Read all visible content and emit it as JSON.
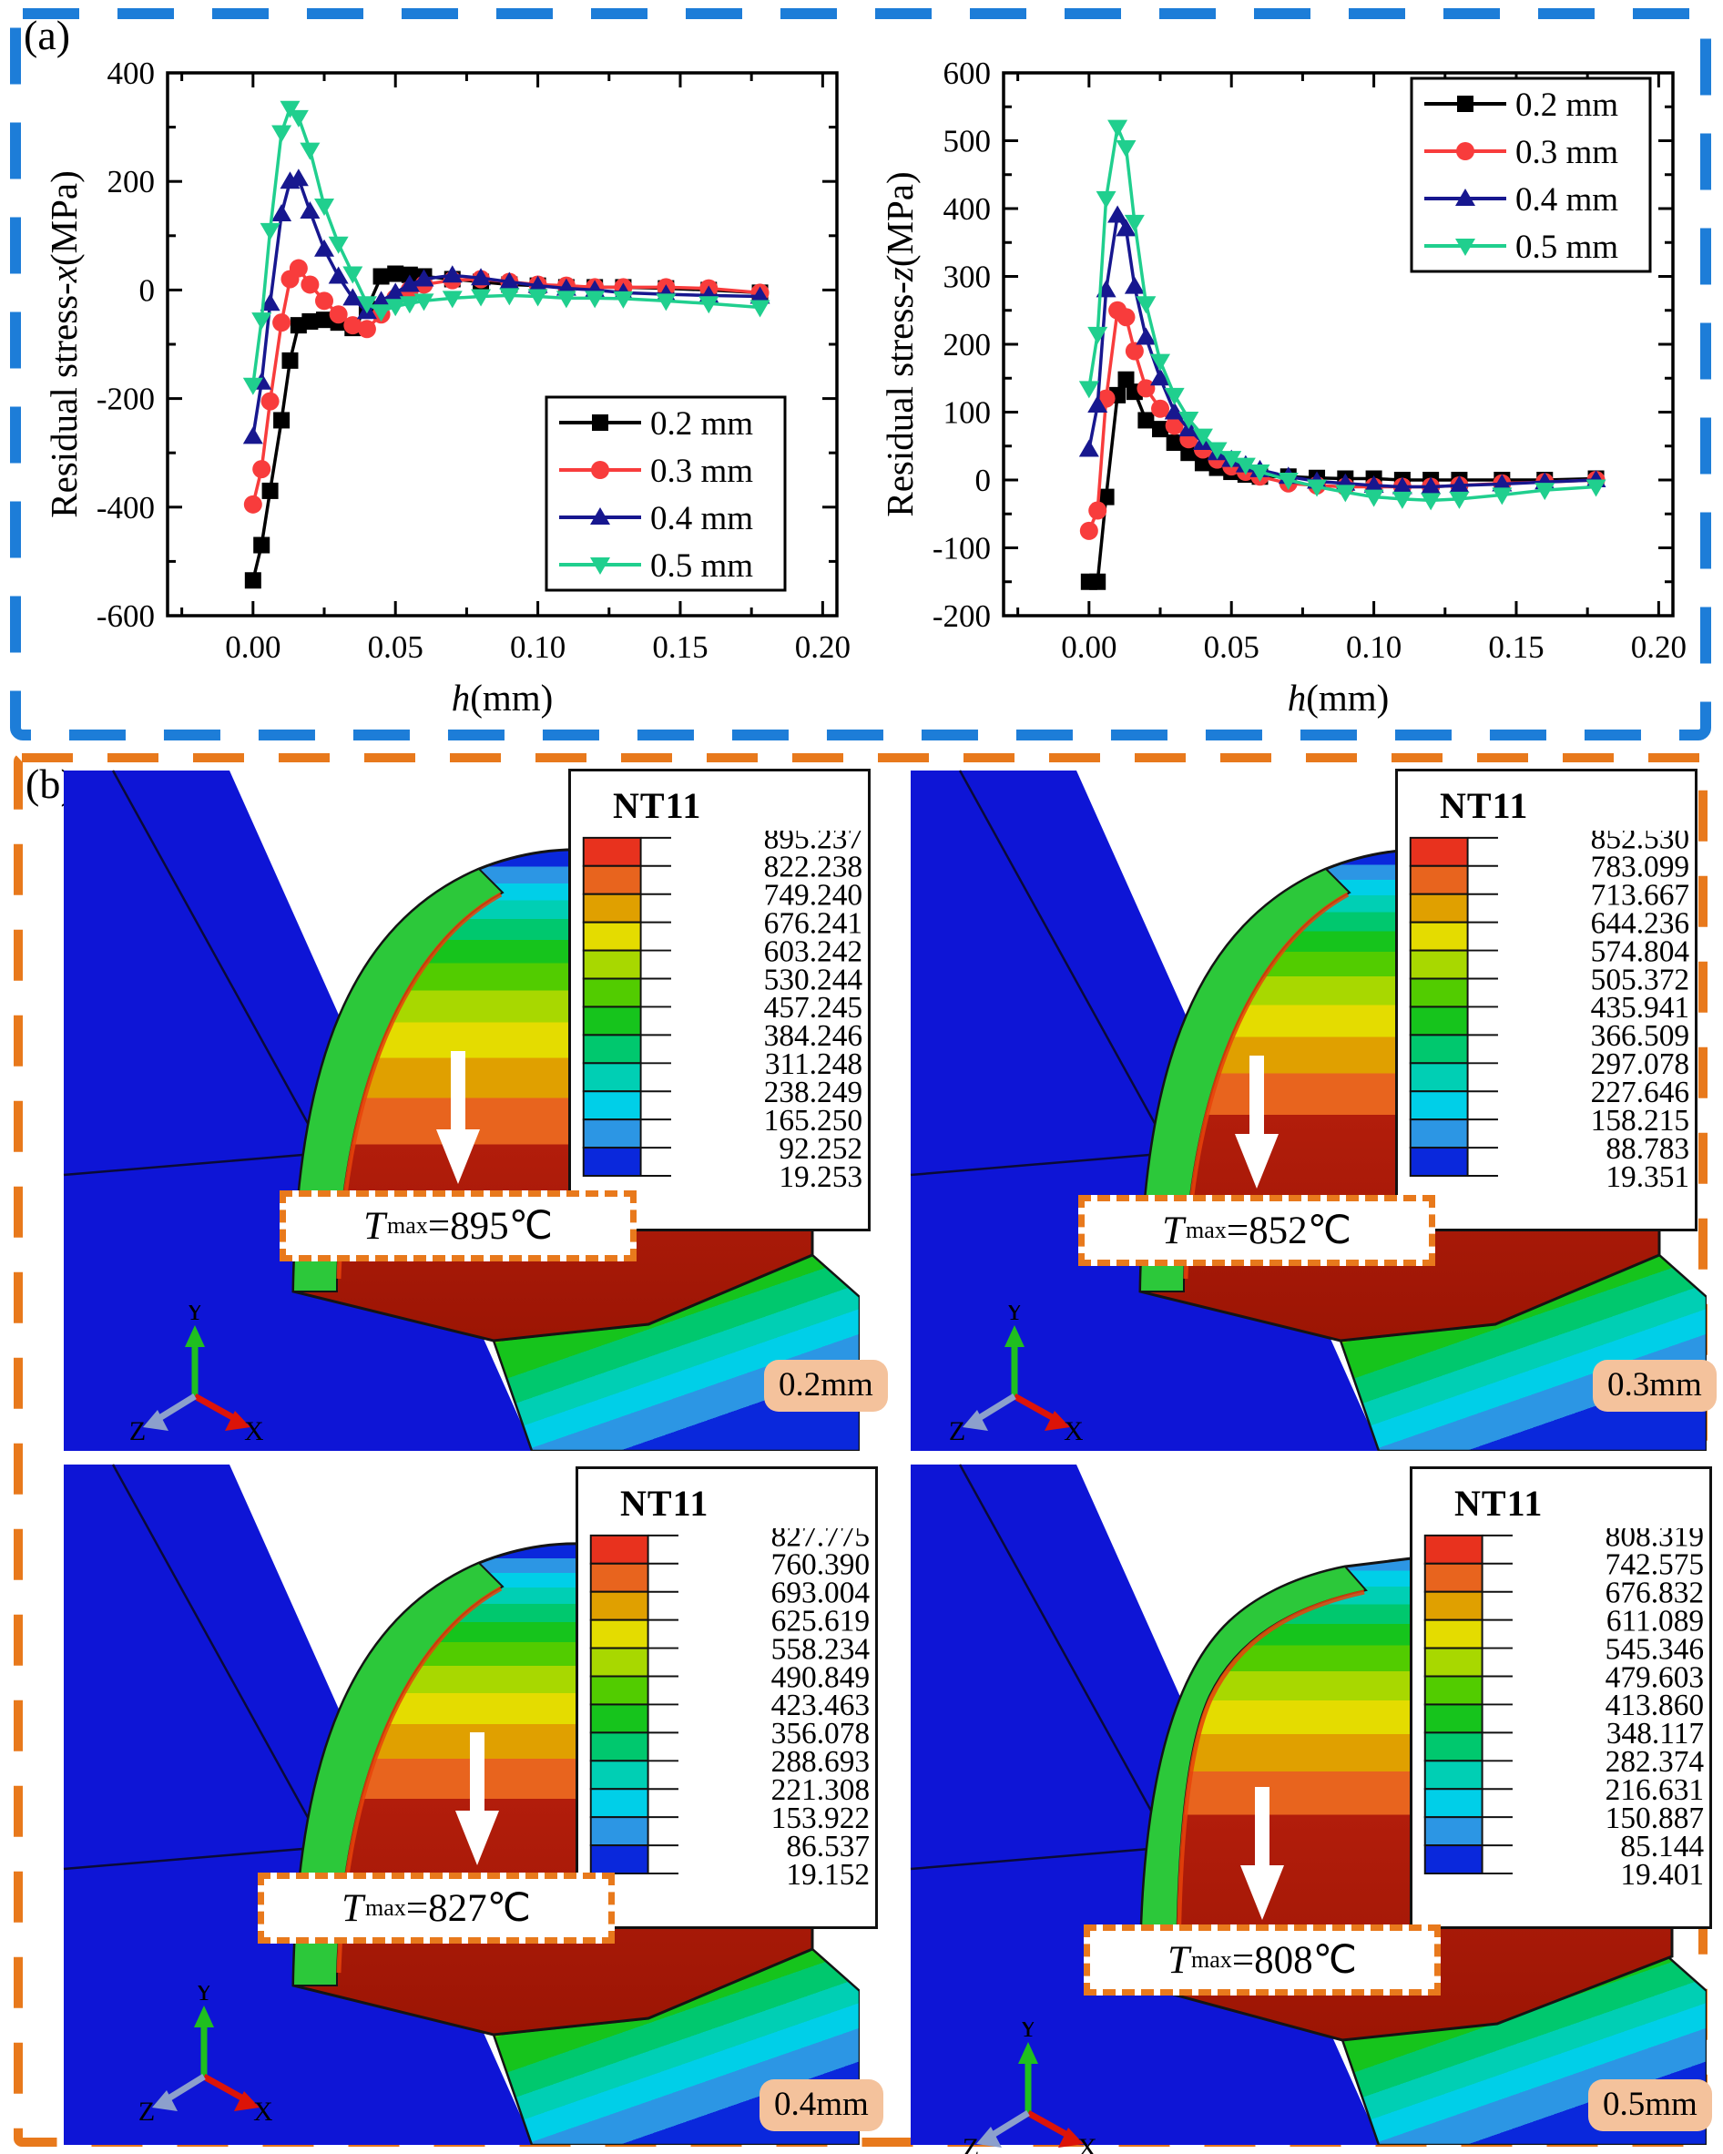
{
  "panel_a": {
    "label": "(a)",
    "border_color": "#1d7dd8"
  },
  "panel_b": {
    "label": "(b)",
    "border_color": "#e8791c",
    "badge_color": "#f4c29c",
    "legend_title": "NT11",
    "axis_triad": {
      "x": "X",
      "y": "Y",
      "z": "Z"
    },
    "contour_colors": [
      "#e8321e",
      "#e8641e",
      "#e0a000",
      "#e4dc00",
      "#a8d800",
      "#52cc00",
      "#16c41c",
      "#00c86e",
      "#00cfb4",
      "#00cfe8",
      "#2c96e4",
      "#0a28dc"
    ],
    "plots": [
      {
        "badge": "0.2mm",
        "tmax": {
          "var": "T",
          "sub": "max",
          "rest": "=895℃"
        },
        "levels": [
          "895.237",
          "822.238",
          "749.240",
          "676.241",
          "603.242",
          "530.244",
          "457.245",
          "384.246",
          "311.248",
          "238.249",
          "165.250",
          "92.252",
          "19.253"
        ]
      },
      {
        "badge": "0.3mm",
        "tmax": {
          "var": "T",
          "sub": "max",
          "rest": "=852℃"
        },
        "levels": [
          "852.530",
          "783.099",
          "713.667",
          "644.236",
          "574.804",
          "505.372",
          "435.941",
          "366.509",
          "297.078",
          "227.646",
          "158.215",
          "88.783",
          "19.351"
        ]
      },
      {
        "badge": "0.4mm",
        "tmax": {
          "var": "T",
          "sub": "max",
          "rest": "=827℃"
        },
        "levels": [
          "827.775",
          "760.390",
          "693.004",
          "625.619",
          "558.234",
          "490.849",
          "423.463",
          "356.078",
          "288.693",
          "221.308",
          "153.922",
          "86.537",
          "19.152"
        ]
      },
      {
        "badge": "0.5mm",
        "tmax": {
          "var": "T",
          "sub": "max",
          "rest": "=808℃"
        },
        "levels": [
          "808.319",
          "742.575",
          "676.832",
          "611.089",
          "545.346",
          "479.603",
          "413.860",
          "348.117",
          "282.374",
          "216.631",
          "150.887",
          "85.144",
          "19.401"
        ]
      }
    ]
  },
  "chart_data": [
    {
      "type": "line",
      "ylabel": "Residual stress-x(MPa)",
      "ylabel_parts": [
        "Residual stress-",
        "x",
        "(MPa)"
      ],
      "xlabel_parts": [
        "h",
        "(mm)"
      ],
      "xlim": [
        -0.03,
        0.205
      ],
      "ylim": [
        -600,
        400
      ],
      "yticks": [
        -600,
        -400,
        -200,
        0,
        200,
        400
      ],
      "xticks": [
        0,
        0.05,
        0.1,
        0.15,
        0.2
      ],
      "xtick_labels": [
        "0.00",
        "0.05",
        "0.10",
        "0.15",
        "0.20"
      ],
      "x_minor_step": 0.025,
      "y_minor_step": 100,
      "grid": false,
      "legend_position": "bottom-right",
      "x": [
        0.0,
        0.003,
        0.006,
        0.01,
        0.013,
        0.016,
        0.02,
        0.025,
        0.03,
        0.035,
        0.04,
        0.045,
        0.05,
        0.055,
        0.06,
        0.07,
        0.08,
        0.09,
        0.1,
        0.11,
        0.12,
        0.13,
        0.145,
        0.16,
        0.178
      ],
      "series": [
        {
          "name": "0.2 mm",
          "marker": "square",
          "color": "#000000",
          "values": [
            -535,
            -470,
            -370,
            -240,
            -130,
            -65,
            -58,
            -55,
            -60,
            -70,
            -35,
            25,
            30,
            28,
            25,
            20,
            15,
            10,
            8,
            5,
            5,
            5,
            3,
            0,
            -5
          ]
        },
        {
          "name": "0.3 mm",
          "marker": "circle",
          "color": "#f83c3c",
          "values": [
            -395,
            -330,
            -205,
            -60,
            20,
            40,
            10,
            -20,
            -45,
            -65,
            -72,
            -45,
            -15,
            0,
            10,
            18,
            20,
            15,
            10,
            8,
            5,
            5,
            5,
            3,
            -5
          ]
        },
        {
          "name": "0.4 mm",
          "marker": "triangle-up",
          "color": "#17178f",
          "values": [
            -270,
            -170,
            -25,
            140,
            200,
            205,
            145,
            75,
            25,
            -15,
            -40,
            -20,
            -5,
            10,
            20,
            27,
            22,
            15,
            8,
            3,
            0,
            -5,
            -8,
            -10,
            -12
          ]
        },
        {
          "name": "0.5 mm",
          "marker": "triangle-down",
          "color": "#20cf8e",
          "values": [
            -175,
            -55,
            110,
            290,
            335,
            318,
            258,
            155,
            85,
            30,
            -25,
            -40,
            -30,
            -25,
            -20,
            -15,
            -12,
            -10,
            -12,
            -15,
            -15,
            -16,
            -20,
            -25,
            -32
          ]
        }
      ]
    },
    {
      "type": "line",
      "ylabel": "Residual stress-z(MPa)",
      "ylabel_parts": [
        "Residual stress-",
        "z",
        "(MPa)"
      ],
      "xlabel_parts": [
        "h",
        "(mm)"
      ],
      "xlim": [
        -0.03,
        0.205
      ],
      "ylim": [
        -200,
        600
      ],
      "yticks": [
        -200,
        -100,
        0,
        100,
        200,
        300,
        400,
        500,
        600
      ],
      "xticks": [
        0,
        0.05,
        0.1,
        0.15,
        0.2
      ],
      "xtick_labels": [
        "0.00",
        "0.05",
        "0.10",
        "0.15",
        "0.20"
      ],
      "x_minor_step": 0.025,
      "y_minor_step": 50,
      "grid": false,
      "legend_position": "top-right",
      "x": [
        0.0,
        0.003,
        0.006,
        0.01,
        0.013,
        0.016,
        0.02,
        0.025,
        0.03,
        0.035,
        0.04,
        0.045,
        0.05,
        0.055,
        0.06,
        0.07,
        0.08,
        0.09,
        0.1,
        0.11,
        0.12,
        0.13,
        0.145,
        0.16,
        0.178
      ],
      "series": [
        {
          "name": "0.2 mm",
          "marker": "square",
          "color": "#000000",
          "values": [
            -150,
            -150,
            -25,
            125,
            148,
            130,
            88,
            75,
            55,
            40,
            25,
            18,
            12,
            8,
            5,
            5,
            3,
            2,
            2,
            0,
            0,
            0,
            0,
            0,
            2
          ]
        },
        {
          "name": "0.3 mm",
          "marker": "circle",
          "color": "#f83c3c",
          "values": [
            -75,
            -45,
            120,
            250,
            240,
            190,
            135,
            105,
            80,
            60,
            45,
            30,
            20,
            12,
            5,
            -5,
            -8,
            -10,
            -10,
            -10,
            -10,
            -8,
            -5,
            -3,
            0
          ]
        },
        {
          "name": "0.4 mm",
          "marker": "triangle-up",
          "color": "#17178f",
          "values": [
            45,
            110,
            280,
            390,
            370,
            285,
            210,
            150,
            100,
            75,
            55,
            40,
            30,
            22,
            15,
            5,
            -2,
            -5,
            -8,
            -10,
            -10,
            -8,
            -6,
            -3,
            0
          ]
        },
        {
          "name": "0.5 mm",
          "marker": "triangle-down",
          "color": "#20cf8e",
          "values": [
            135,
            215,
            415,
            520,
            490,
            380,
            260,
            175,
            125,
            90,
            65,
            45,
            32,
            22,
            12,
            0,
            -10,
            -18,
            -25,
            -28,
            -30,
            -28,
            -22,
            -15,
            -10
          ]
        }
      ]
    }
  ]
}
